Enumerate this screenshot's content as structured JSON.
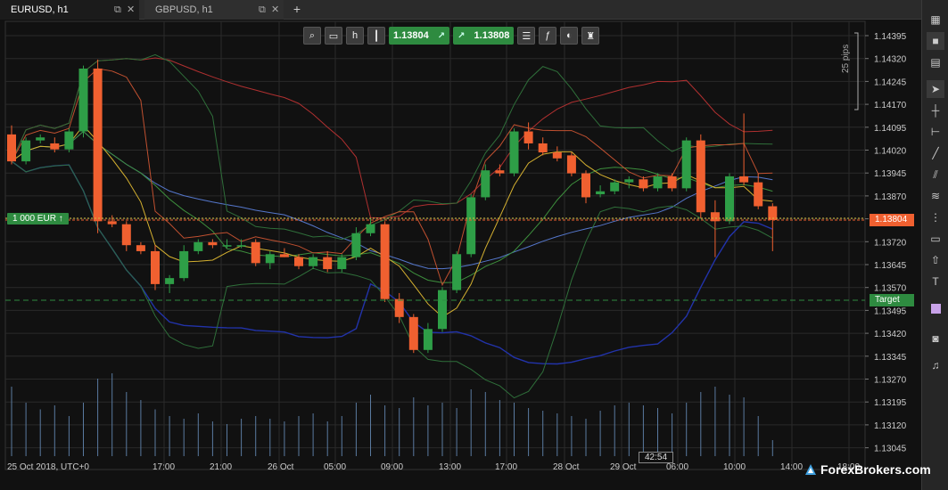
{
  "tabs": [
    {
      "label": "EURUSD, h1",
      "active": true
    },
    {
      "label": "GBPUSD, h1",
      "active": false
    }
  ],
  "tab_add_label": "+",
  "toolbar": {
    "sell_price": "1.13804",
    "buy_price": "1.13808",
    "sell_arrow": "↗",
    "buy_arrow": "↗"
  },
  "position_label": "1 000 EUR  ↑",
  "current_price": "1.13804",
  "target_label": "Target",
  "countdown": "42:54",
  "pips_label": "25 pips",
  "watermark": "ForexBrokers.com",
  "price_axis": [
    "1.14395",
    "1.14320",
    "1.14245",
    "1.14170",
    "1.14095",
    "1.14020",
    "1.13945",
    "1.13870",
    "1.13795",
    "1.13720",
    "1.13645",
    "1.13570",
    "1.13495",
    "1.13420",
    "1.13345",
    "1.13270",
    "1.13195",
    "1.13120",
    "1.13045"
  ],
  "time_axis": [
    "25 Oct 2018, UTC+0",
    "17:00",
    "21:00",
    "26 Oct",
    "05:00",
    "09:00",
    "13:00",
    "17:00",
    "28 Oct",
    "29 Oct",
    "06:00",
    "10:00",
    "14:00",
    "18:00"
  ],
  "colors": {
    "bull": "#2e9e47",
    "bear": "#f06030",
    "background": "#111111",
    "grid": "#2a2a2a"
  },
  "chart_data": {
    "type": "candlestick",
    "symbol": "EURUSD",
    "timeframe": "h1",
    "ylim": [
      1.13045,
      1.1442
    ],
    "candles": [
      {
        "o": 1.1409,
        "h": 1.1412,
        "l": 1.1399,
        "c": 1.14
      },
      {
        "o": 1.14,
        "h": 1.1408,
        "l": 1.1399,
        "c": 1.1407
      },
      {
        "o": 1.1407,
        "h": 1.1409,
        "l": 1.1406,
        "c": 1.1408
      },
      {
        "o": 1.1406,
        "h": 1.1408,
        "l": 1.1403,
        "c": 1.1404
      },
      {
        "o": 1.1404,
        "h": 1.1411,
        "l": 1.1403,
        "c": 1.141
      },
      {
        "o": 1.141,
        "h": 1.1432,
        "l": 1.1408,
        "c": 1.1431
      },
      {
        "o": 1.1431,
        "h": 1.1434,
        "l": 1.1376,
        "c": 1.138
      },
      {
        "o": 1.138,
        "h": 1.1382,
        "l": 1.1378,
        "c": 1.1379
      },
      {
        "o": 1.1379,
        "h": 1.138,
        "l": 1.137,
        "c": 1.1372
      },
      {
        "o": 1.1372,
        "h": 1.1373,
        "l": 1.1369,
        "c": 1.137
      },
      {
        "o": 1.137,
        "h": 1.1372,
        "l": 1.1357,
        "c": 1.1359
      },
      {
        "o": 1.1359,
        "h": 1.1362,
        "l": 1.1356,
        "c": 1.1361
      },
      {
        "o": 1.1361,
        "h": 1.1372,
        "l": 1.136,
        "c": 1.137
      },
      {
        "o": 1.137,
        "h": 1.1374,
        "l": 1.1369,
        "c": 1.1373
      },
      {
        "o": 1.1373,
        "h": 1.1374,
        "l": 1.1371,
        "c": 1.1372
      },
      {
        "o": 1.1372,
        "h": 1.1374,
        "l": 1.1371,
        "c": 1.1372
      },
      {
        "o": 1.1372,
        "h": 1.1374,
        "l": 1.1371,
        "c": 1.1372
      },
      {
        "o": 1.1373,
        "h": 1.1374,
        "l": 1.1365,
        "c": 1.1366
      },
      {
        "o": 1.1366,
        "h": 1.137,
        "l": 1.1364,
        "c": 1.1369
      },
      {
        "o": 1.1369,
        "h": 1.1371,
        "l": 1.1368,
        "c": 1.1368
      },
      {
        "o": 1.1368,
        "h": 1.1369,
        "l": 1.1364,
        "c": 1.1365
      },
      {
        "o": 1.1365,
        "h": 1.1369,
        "l": 1.1364,
        "c": 1.1368
      },
      {
        "o": 1.1368,
        "h": 1.137,
        "l": 1.1363,
        "c": 1.1364
      },
      {
        "o": 1.1364,
        "h": 1.1369,
        "l": 1.1363,
        "c": 1.1368
      },
      {
        "o": 1.1368,
        "h": 1.1378,
        "l": 1.1367,
        "c": 1.1376
      },
      {
        "o": 1.1376,
        "h": 1.1381,
        "l": 1.1375,
        "c": 1.1379
      },
      {
        "o": 1.1379,
        "h": 1.138,
        "l": 1.1353,
        "c": 1.1354
      },
      {
        "o": 1.1354,
        "h": 1.1356,
        "l": 1.1346,
        "c": 1.1348
      },
      {
        "o": 1.1348,
        "h": 1.1349,
        "l": 1.1336,
        "c": 1.1337
      },
      {
        "o": 1.1337,
        "h": 1.1346,
        "l": 1.1336,
        "c": 1.1344
      },
      {
        "o": 1.1344,
        "h": 1.1358,
        "l": 1.1343,
        "c": 1.1357
      },
      {
        "o": 1.1357,
        "h": 1.137,
        "l": 1.1356,
        "c": 1.1369
      },
      {
        "o": 1.1369,
        "h": 1.1389,
        "l": 1.1368,
        "c": 1.1388
      },
      {
        "o": 1.1388,
        "h": 1.1399,
        "l": 1.1387,
        "c": 1.1397
      },
      {
        "o": 1.1397,
        "h": 1.1399,
        "l": 1.1395,
        "c": 1.1396
      },
      {
        "o": 1.1396,
        "h": 1.1411,
        "l": 1.1395,
        "c": 1.141
      },
      {
        "o": 1.141,
        "h": 1.1413,
        "l": 1.1404,
        "c": 1.1406
      },
      {
        "o": 1.1406,
        "h": 1.1408,
        "l": 1.1402,
        "c": 1.1403
      },
      {
        "o": 1.1403,
        "h": 1.1405,
        "l": 1.14,
        "c": 1.1401
      },
      {
        "o": 1.1402,
        "h": 1.1403,
        "l": 1.1395,
        "c": 1.1396
      },
      {
        "o": 1.1396,
        "h": 1.1397,
        "l": 1.1386,
        "c": 1.1388
      },
      {
        "o": 1.1389,
        "h": 1.1392,
        "l": 1.1388,
        "c": 1.139
      },
      {
        "o": 1.139,
        "h": 1.1394,
        "l": 1.1389,
        "c": 1.1393
      },
      {
        "o": 1.1393,
        "h": 1.1395,
        "l": 1.1391,
        "c": 1.1394
      },
      {
        "o": 1.1394,
        "h": 1.1395,
        "l": 1.139,
        "c": 1.1391
      },
      {
        "o": 1.1391,
        "h": 1.1396,
        "l": 1.139,
        "c": 1.1395
      },
      {
        "o": 1.1395,
        "h": 1.1396,
        "l": 1.139,
        "c": 1.1391
      },
      {
        "o": 1.1391,
        "h": 1.1408,
        "l": 1.139,
        "c": 1.1407
      },
      {
        "o": 1.1407,
        "h": 1.1409,
        "l": 1.1381,
        "c": 1.1383
      },
      {
        "o": 1.1383,
        "h": 1.1387,
        "l": 1.1368,
        "c": 1.138
      },
      {
        "o": 1.138,
        "h": 1.1396,
        "l": 1.1379,
        "c": 1.1395
      },
      {
        "o": 1.1395,
        "h": 1.1416,
        "l": 1.1392,
        "c": 1.1393
      },
      {
        "o": 1.1393,
        "h": 1.1396,
        "l": 1.1384,
        "c": 1.1385
      },
      {
        "o": 1.1385,
        "h": 1.1386,
        "l": 1.137,
        "c": 1.13804
      }
    ],
    "volume": [
      52,
      40,
      35,
      38,
      30,
      40,
      58,
      62,
      48,
      42,
      35,
      30,
      28,
      32,
      26,
      24,
      28,
      30,
      28,
      26,
      30,
      32,
      26,
      30,
      40,
      46,
      38,
      36,
      44,
      38,
      40,
      36,
      50,
      48,
      42,
      40,
      36,
      34,
      32,
      30,
      28,
      34,
      38,
      40,
      38,
      36,
      32,
      40,
      48,
      52,
      46,
      44,
      30,
      12
    ],
    "grid": true
  }
}
